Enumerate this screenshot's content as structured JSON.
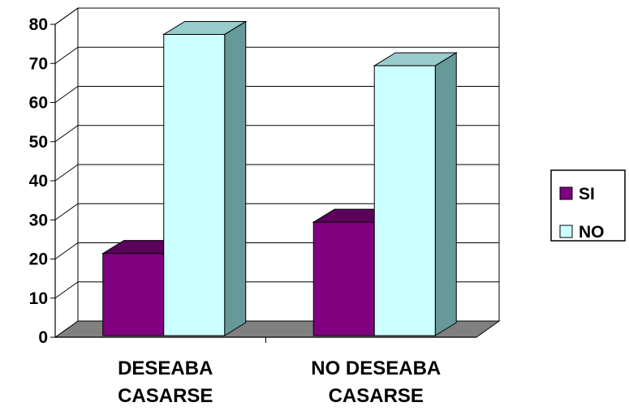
{
  "chart_data": {
    "type": "bar",
    "title": "",
    "xlabel": "",
    "ylabel": "",
    "categories": [
      [
        "DESEABA",
        "CASARSE"
      ],
      [
        "NO DESEABA",
        "CASARSE"
      ]
    ],
    "series": [
      {
        "name": "SI",
        "values": [
          21,
          29
        ],
        "color": "#800080"
      },
      {
        "name": "NO",
        "values": [
          77,
          69
        ],
        "color": "#CCFFFF"
      }
    ],
    "ylim": [
      0,
      80
    ],
    "yticks": [
      "0",
      "10",
      "20",
      "30",
      "40",
      "50",
      "60",
      "70",
      "80"
    ],
    "grid": true,
    "legend": "right",
    "render": "3d-column"
  }
}
